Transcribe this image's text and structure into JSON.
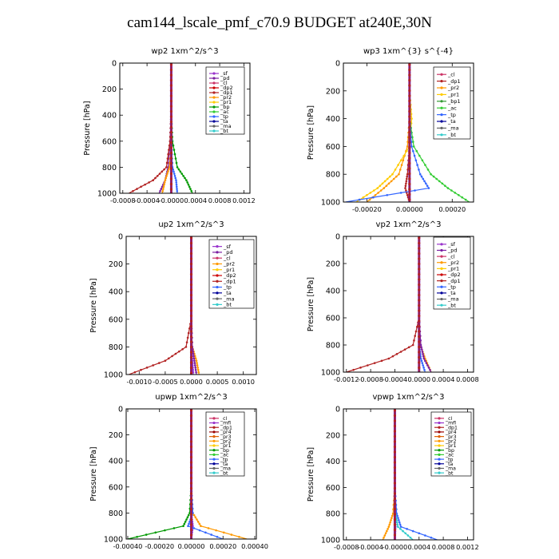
{
  "title": "cam144_lscale_pmf_c70.9  BUDGET at240E,30N",
  "colors": {
    "sf": "#9933cc",
    "pd": "#7b1fa2",
    "cl": "#cc3366",
    "dp2": "#cc0000",
    "dp1": "#b22222",
    "pr2": "#ff9900",
    "pr1": "#ffcc00",
    "bp": "#009900",
    "bp1": "#339933",
    "ac": "#33cc33",
    "tp": "#3366ff",
    "ta": "#000099",
    "ma": "#666666",
    "bt": "#33cccc",
    "mfl": "#9933cc",
    "pr4": "#990000",
    "pr3": "#e06000"
  },
  "chart_data": [
    {
      "id": "wp2",
      "type": "line",
      "title": "wp2   1xm^2/s^3",
      "ylabel": "Pressure  [hPa]",
      "ylim": [
        1000,
        0
      ],
      "xlim": [
        -0.00085,
        0.0013
      ],
      "xticks": [
        "-0.0008",
        "-0.0004",
        "-0.0000",
        "0.0004",
        "0.0008",
        "0.0012"
      ],
      "xtick_values": [
        -0.0008,
        -0.0004,
        0.0,
        0.0004,
        0.0008,
        0.0012
      ],
      "yticks": [
        "0",
        "200",
        "400",
        "600",
        "800",
        "1000"
      ],
      "legend": [
        "_sf",
        "_pd",
        "_cl",
        "_dp2",
        "_dp1",
        "_pr2",
        "_pr1",
        "_bp",
        "_ac",
        "_tp",
        "_ta",
        "_ma",
        "_bt"
      ],
      "series": [
        {
          "key": "pd",
          "x": [
            0.0,
            0.0,
            0.0,
            -2e-05,
            -5e-05,
            -0.0001,
            -0.0002
          ]
        },
        {
          "key": "dp1",
          "x": [
            0.0,
            0.0,
            0.0,
            -2e-05,
            -8e-05,
            -0.0003,
            -0.0007
          ]
        },
        {
          "key": "pr2",
          "x": [
            0.0,
            0.0,
            0.0,
            1e-05,
            -3e-05,
            -0.0001,
            -0.00015
          ]
        },
        {
          "key": "bp",
          "x": [
            0.0,
            0.0,
            0.0,
            2e-05,
            0.0001,
            0.00025,
            0.00035
          ]
        },
        {
          "key": "tp",
          "x": [
            0.0,
            0.0,
            0.0,
            0.0,
            2e-05,
            8e-05,
            0.0001
          ]
        }
      ]
    },
    {
      "id": "wp3",
      "type": "line",
      "title": "wp3   1xm^{3} s^{-4}",
      "ylabel": "Pressure  [hPa]",
      "ylim": [
        1000,
        0
      ],
      "xlim": [
        -0.00031,
        0.0003
      ],
      "xticks": [
        "-0.00020",
        "0.00000",
        "0.00020"
      ],
      "xtick_values": [
        -0.0002,
        0.0,
        0.0002
      ],
      "yticks": [
        "0",
        "200",
        "400",
        "600",
        "800",
        "1000"
      ],
      "legend": [
        "_cl",
        "_dp1",
        "_pr2",
        "_pr1",
        "_bp1",
        "_ac",
        "_tp",
        "_ta",
        "_ma",
        "_bt"
      ],
      "series": [
        {
          "key": "dp1",
          "x": [
            0.0,
            0.0,
            0.0,
            0.0,
            -1e-05,
            -2e-05,
            0.0
          ]
        },
        {
          "key": "pr2",
          "x": [
            0.0,
            0.0,
            0.0,
            -1e-05,
            -5e-05,
            -0.00012,
            -0.0002
          ]
        },
        {
          "key": "pr1",
          "x": [
            0.0,
            0.0,
            1e-05,
            0.0,
            -8e-05,
            -0.00015,
            -0.00025
          ]
        },
        {
          "key": "ac",
          "x": [
            0.0,
            0.0,
            0.0,
            2e-05,
            0.0001,
            0.00018,
            0.00028
          ]
        },
        {
          "key": "tp",
          "x": [
            0.0,
            0.0,
            0.0,
            1e-05,
            5e-05,
            9e-05,
            -0.0003
          ]
        }
      ]
    },
    {
      "id": "up2",
      "type": "line",
      "title": "up2   1xm^2/s^3",
      "ylabel": "Pressure  [hPa]",
      "ylim": [
        1000,
        0
      ],
      "xlim": [
        -0.00125,
        0.00125
      ],
      "xticks": [
        "-0.0010",
        "-0.0005",
        "0.0000",
        "0.0005",
        "0.0010"
      ],
      "xtick_values": [
        -0.001,
        -0.0005,
        0.0,
        0.0005,
        0.001
      ],
      "yticks": [
        "0",
        "200",
        "400",
        "600",
        "800",
        "1000"
      ],
      "legend": [
        "_sf",
        "_pd",
        "_cl",
        "_pr2",
        "_pr1",
        "_dp2",
        "_dp1",
        "_tp",
        "_ta",
        "_ma",
        "_bt"
      ],
      "series": [
        {
          "key": "dp1",
          "x": [
            0.0,
            0.0,
            0.0,
            0.0,
            -0.0001,
            -0.0005,
            -0.0012
          ]
        },
        {
          "key": "pr2",
          "x": [
            0.0,
            0.0,
            0.0,
            0.0,
            2e-05,
            0.0001,
            0.00015
          ]
        },
        {
          "key": "pd",
          "x": [
            0.0,
            0.0,
            0.0,
            0.0,
            2e-05,
            6e-05,
            0.0001
          ]
        },
        {
          "key": "sf",
          "x": [
            0.0,
            0.0,
            0.0,
            0.0,
            0.0,
            2e-05,
            4e-05
          ]
        }
      ]
    },
    {
      "id": "vp2",
      "type": "line",
      "title": "vp2   1xm^2/s^3",
      "ylabel": "Pressure  [hPa]",
      "ylim": [
        1000,
        0
      ],
      "xlim": [
        -0.00125,
        0.0009
      ],
      "xticks": [
        "-0.0012",
        "-0.0008",
        "-0.0004",
        "0.0000",
        "0.0004",
        "0.0008"
      ],
      "xtick_values": [
        -0.0012,
        -0.0008,
        -0.0004,
        0.0,
        0.0004,
        0.0008
      ],
      "yticks": [
        "0",
        "200",
        "400",
        "600",
        "800",
        "1000"
      ],
      "legend": [
        "_sf",
        "_pd",
        "_cl",
        "_pr2",
        "_pr1",
        "_dp2",
        "_dp1",
        "_tp",
        "_ta",
        "_ma",
        "_bt"
      ],
      "series": [
        {
          "key": "dp1",
          "x": [
            0.0,
            0.0,
            0.0,
            0.0,
            -0.0001,
            -0.0005,
            -0.0012
          ]
        },
        {
          "key": "pr2",
          "x": [
            0.0,
            0.0,
            0.0,
            0.0,
            2e-05,
            0.0001,
            0.0002
          ]
        },
        {
          "key": "pd",
          "x": [
            0.0,
            0.0,
            0.0,
            0.0,
            3e-05,
            8e-05,
            0.0002
          ]
        },
        {
          "key": "tp",
          "x": [
            0.0,
            0.0,
            0.0,
            0.0,
            0.0,
            3e-05,
            0.0001
          ]
        }
      ]
    },
    {
      "id": "upwp",
      "type": "line",
      "title": "upwp   1xm^2/s^3",
      "ylabel": "Pressure  [hPa]",
      "ylim": [
        1000,
        0
      ],
      "xlim": [
        -0.00041,
        0.00041
      ],
      "xticks": [
        "-0.00040",
        "-0.00020",
        "0.00000",
        "0.00020",
        "0.00040"
      ],
      "xtick_values": [
        -0.0004,
        -0.0002,
        0.0,
        0.0002,
        0.0004
      ],
      "yticks": [
        "0",
        "200",
        "400",
        "600",
        "800",
        "1000"
      ],
      "legend": [
        "_cl",
        "_mfl",
        "_dp1",
        "_pr4",
        "_pr3",
        "_pr2",
        "_pr1",
        "_bp",
        "_ac",
        "_tp",
        "_ta",
        "_ma",
        "_bt"
      ],
      "series": [
        {
          "key": "mfl",
          "x": [
            0.0,
            0.0,
            0.0,
            0.0,
            0.0,
            1e-05,
            0.0
          ]
        },
        {
          "key": "pr2",
          "x": [
            0.0,
            0.0,
            0.0,
            0.0,
            1e-05,
            6e-05,
            0.00035
          ]
        },
        {
          "key": "bp",
          "x": [
            0.0,
            0.0,
            0.0,
            0.0,
            -1e-05,
            -5e-05,
            -0.0004
          ]
        },
        {
          "key": "tp",
          "x": [
            0.0,
            0.0,
            0.0,
            0.0,
            1e-05,
            -2e-05,
            0.0002
          ]
        }
      ]
    },
    {
      "id": "vpwp",
      "type": "line",
      "title": "vpwp   1xm^2/s^3",
      "ylabel": "Pressure  [hPa]",
      "ylim": [
        1000,
        0
      ],
      "xlim": [
        -0.00085,
        0.0013
      ],
      "xticks": [
        "-0.0008",
        "-0.0004",
        "-0.0000",
        "0.0004",
        "0.0008",
        "0.0012"
      ],
      "xtick_values": [
        -0.0008,
        -0.0004,
        0.0,
        0.0004,
        0.0008,
        0.0012
      ],
      "yticks": [
        "0",
        "200",
        "400",
        "600",
        "800",
        "1000"
      ],
      "legend": [
        "_cl",
        "_mfl",
        "_dp1",
        "_pr4",
        "_pr3",
        "_pr2",
        "_pr1",
        "_bp",
        "_ac",
        "_tp",
        "_ta",
        "_ma",
        "_bt"
      ],
      "series": [
        {
          "key": "mfl",
          "x": [
            0.0,
            0.0,
            0.0,
            0.0,
            0.0,
            1e-05,
            0.0
          ]
        },
        {
          "key": "pr2",
          "x": [
            0.0,
            0.0,
            0.0,
            0.0,
            -3e-05,
            -0.0001,
            -0.0002
          ]
        },
        {
          "key": "tp",
          "x": [
            0.0,
            0.0,
            0.0,
            0.0,
            3e-05,
            0.0001,
            0.0007
          ]
        },
        {
          "key": "bt",
          "x": [
            0.0,
            0.0,
            0.0,
            0.0,
            1e-05,
            5e-05,
            0.0003
          ]
        }
      ]
    }
  ],
  "series_levels": [
    0,
    200,
    400,
    600,
    800,
    900,
    1000
  ]
}
